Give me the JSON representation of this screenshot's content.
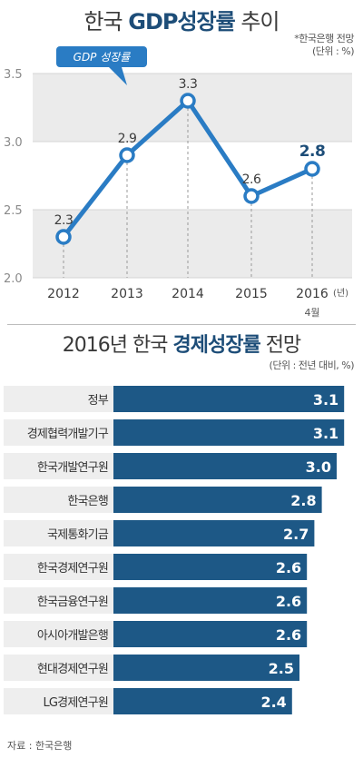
{
  "chart_data": [
    {
      "type": "line",
      "title_prefix": "한국 ",
      "title_bold": "GDP성장률",
      "title_suffix": " 추이",
      "note": "*한국은행 전망",
      "unit": "(단위 : %)",
      "series": [
        {
          "name": "GDP 성장률",
          "values": [
            2.3,
            2.9,
            3.3,
            2.6,
            2.8
          ]
        }
      ],
      "categories": [
        "2012",
        "2013",
        "2014",
        "2015",
        "2016"
      ],
      "category_suffix": "(년)",
      "category_sub": "4월",
      "y_ticks": [
        "2.0",
        "2.5",
        "3.0",
        "3.5"
      ],
      "ylim": [
        2.0,
        3.5
      ],
      "value_labels": [
        "2.3",
        "2.9",
        "3.3",
        "2.6",
        "2.8"
      ],
      "colors": {
        "line": "#2a7cc4",
        "highlight_label": "#1d4d78",
        "band": "#ebebeb"
      }
    },
    {
      "type": "bar",
      "orientation": "horizontal",
      "title_prefix": "2016년 한국 ",
      "title_bold": "경제성장률",
      "title_suffix": " 전망",
      "unit": "(단위 : 전년 대비, %)",
      "categories": [
        "정부",
        "경제협력개발기구",
        "한국개발연구원",
        "한국은행",
        "국제통화기금",
        "한국경제연구원",
        "한국금융연구원",
        "아시아개발은행",
        "현대경제연구원",
        "LG경제연구원"
      ],
      "values": [
        3.1,
        3.1,
        3.0,
        2.8,
        2.7,
        2.6,
        2.6,
        2.6,
        2.5,
        2.4
      ],
      "value_labels": [
        "3.1",
        "3.1",
        "3.0",
        "2.8",
        "2.7",
        "2.6",
        "2.6",
        "2.6",
        "2.5",
        "2.4"
      ],
      "colors": {
        "bar": "#1d5886",
        "label_bg": "#eeeeee"
      }
    }
  ],
  "source": "자료 : 한국은행"
}
